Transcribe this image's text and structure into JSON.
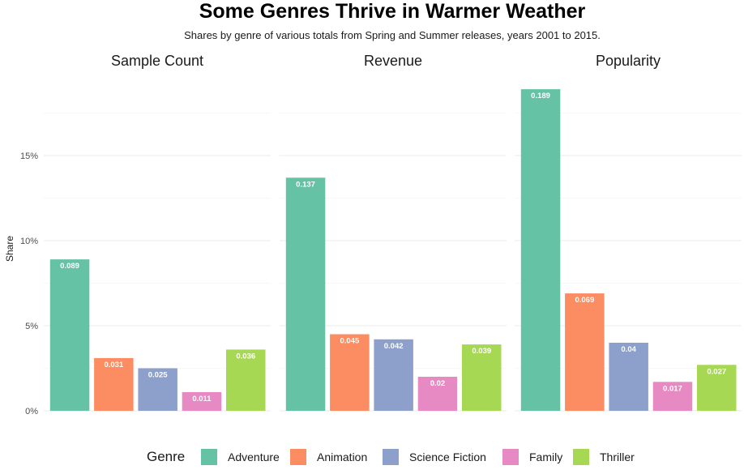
{
  "chart_data": {
    "type": "bar",
    "title": "Some Genres Thrive in Warmer Weather",
    "subtitle": "Shares by genre of various totals from Spring and Summer releases, years 2001 to 2015.",
    "ylabel": "Share",
    "xlabel": "",
    "ylim": [
      0,
      0.19
    ],
    "yticks": [
      0,
      0.05,
      0.1,
      0.15
    ],
    "ytick_labels": [
      "0%",
      "5%",
      "10%",
      "15%"
    ],
    "grid": true,
    "legend_title": "Genre",
    "legend_position": "bottom",
    "categories": [
      "Adventure",
      "Animation",
      "Science Fiction",
      "Family",
      "Thriller"
    ],
    "colors": [
      "#66c2a5",
      "#fc8d62",
      "#8da0cb",
      "#e78ac3",
      "#a6d854"
    ],
    "panels": [
      {
        "name": "Sample Count",
        "values": [
          0.089,
          0.031,
          0.025,
          0.011,
          0.036
        ],
        "labels": [
          "0.089",
          "0.031",
          "0.025",
          "0.011",
          "0.036"
        ]
      },
      {
        "name": "Revenue",
        "values": [
          0.137,
          0.045,
          0.042,
          0.02,
          0.039
        ],
        "labels": [
          "0.137",
          "0.045",
          "0.042",
          "0.02",
          "0.039"
        ]
      },
      {
        "name": "Popularity",
        "values": [
          0.189,
          0.069,
          0.04,
          0.017,
          0.027
        ],
        "labels": [
          "0.189",
          "0.069",
          "0.04",
          "0.017",
          "0.027"
        ]
      }
    ]
  }
}
